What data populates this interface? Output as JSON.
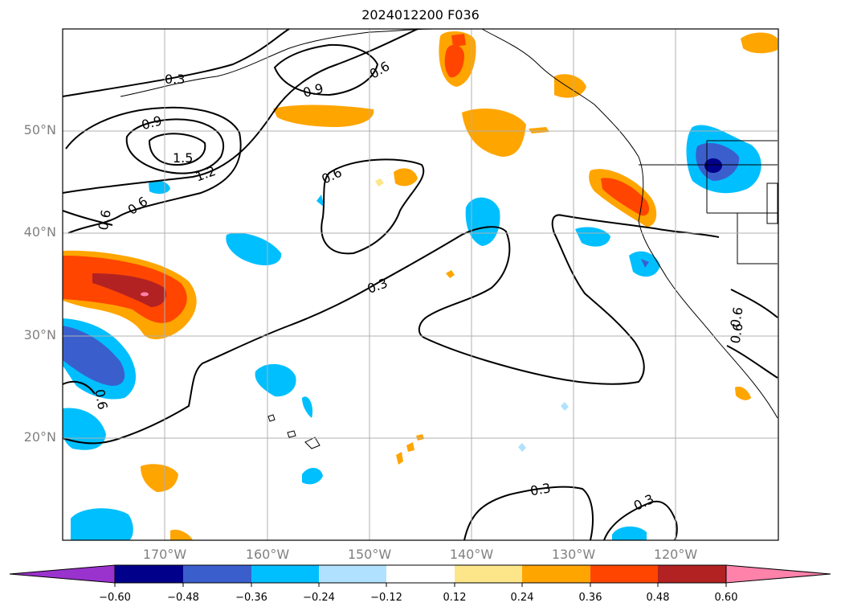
{
  "title": "2024012200 F036",
  "map": {
    "lat_labels": [
      "50°N",
      "40°N",
      "30°N",
      "20°N"
    ],
    "lon_labels": [
      "170°W",
      "160°W",
      "150°W",
      "140°W",
      "130°W",
      "120°W"
    ],
    "contour_labels": [
      "0.3",
      "0.6",
      "0.9",
      "1.5",
      "1.2",
      "0.9",
      "0.6",
      "0.6",
      "0.6",
      "0.3",
      "0.6",
      "0.3",
      "0.3",
      "0.6",
      "0.6"
    ]
  },
  "colorbar": {
    "tick_labels": [
      "−0.60",
      "−0.48",
      "−0.36",
      "−0.24",
      "−0.12",
      "0.12",
      "0.24",
      "0.36",
      "0.48",
      "0.60"
    ],
    "colors": [
      "#9a32cd",
      "#00008b",
      "#3a5fcd",
      "#00bfff",
      "#b0e2ff",
      "#ffffff",
      "#fde68a",
      "#ffa500",
      "#ff4500",
      "#b22222",
      "#ff82ab"
    ]
  }
}
